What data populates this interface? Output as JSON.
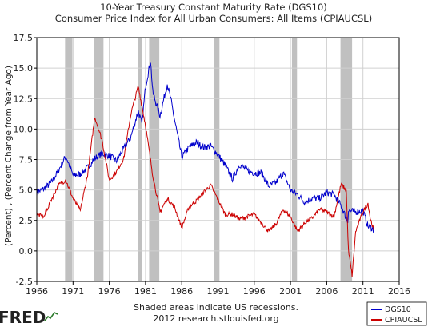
{
  "chart_data": {
    "type": "line",
    "title": "10-Year Treasury Constant Maturity Rate (DGS10)",
    "subtitle": "Consumer Price Index for All Urban Consumers: All Items (CPIAUCSL)",
    "ylabel": "(Percent) , (Percent Change from Year Ago)",
    "xlabel": "",
    "xlim": [
      1966,
      2016
    ],
    "ylim": [
      -2.5,
      17.5
    ],
    "xticks": [
      "1966",
      "1971",
      "1976",
      "1981",
      "1986",
      "1991",
      "1996",
      "2001",
      "2006",
      "2011",
      "2016"
    ],
    "yticks": [
      "-2.5",
      "0.0",
      "2.5",
      "5.0",
      "7.5",
      "10.0",
      "12.5",
      "15.0",
      "17.5"
    ],
    "grid": true,
    "legend_position": "bottom-right",
    "recessions": [
      [
        1969.9,
        1970.9
      ],
      [
        1973.9,
        1975.2
      ],
      [
        1980.0,
        1980.5
      ],
      [
        1981.5,
        1982.9
      ],
      [
        1990.5,
        1991.2
      ],
      [
        2001.2,
        2001.9
      ],
      [
        2007.9,
        2009.5
      ]
    ],
    "note": [
      "Shaded areas indicate US recessions.",
      "2012 research.stlouisfed.org"
    ],
    "logo": "FRED",
    "series": [
      {
        "name": "DGS10",
        "color": "#0000cc",
        "x": [
          1966,
          1967,
          1968,
          1969,
          1970,
          1971,
          1972,
          1973,
          1974,
          1975,
          1976,
          1977,
          1978,
          1979,
          1980,
          1980.5,
          1981,
          1981.7,
          1982,
          1983,
          1984,
          1984.5,
          1985,
          1986,
          1987,
          1988,
          1989,
          1990,
          1991,
          1992,
          1993,
          1994,
          1995,
          1996,
          1997,
          1998,
          1999,
          2000,
          2001,
          2002,
          2003,
          2004,
          2005,
          2006,
          2007,
          2008,
          2008.9,
          2009,
          2010,
          2011,
          2011.7,
          2012,
          2012.5
        ],
        "y": [
          4.8,
          5.1,
          5.6,
          6.6,
          7.8,
          6.2,
          6.3,
          6.8,
          7.6,
          8.0,
          7.8,
          7.4,
          8.4,
          9.4,
          11.5,
          10.4,
          13.5,
          15.6,
          13.0,
          11.1,
          13.7,
          12.4,
          10.8,
          7.7,
          8.5,
          8.9,
          8.5,
          8.6,
          7.9,
          7.0,
          5.9,
          7.1,
          6.6,
          6.4,
          6.4,
          5.3,
          5.6,
          6.4,
          5.0,
          4.6,
          4.0,
          4.3,
          4.3,
          4.8,
          4.6,
          3.7,
          2.4,
          3.3,
          3.2,
          3.3,
          2.0,
          2.0,
          1.7
        ]
      },
      {
        "name": "CPIAUCSL",
        "color": "#cc0000",
        "x": [
          1966,
          1967,
          1968,
          1969,
          1970,
          1971,
          1972,
          1973,
          1974,
          1975,
          1976,
          1977,
          1978,
          1979,
          1980,
          1981,
          1982,
          1983,
          1984,
          1985,
          1986,
          1987,
          1988,
          1989,
          1990,
          1991,
          1992,
          1993,
          1994,
          1995,
          1996,
          1997,
          1998,
          1999,
          2000,
          2001,
          2002,
          2003,
          2004,
          2005,
          2006,
          2007,
          2008,
          2008.7,
          2009,
          2009.5,
          2010,
          2011,
          2011.7,
          2012,
          2012.5
        ],
        "y": [
          3.0,
          2.8,
          4.2,
          5.4,
          5.8,
          4.3,
          3.3,
          6.2,
          11.0,
          9.1,
          5.8,
          6.5,
          7.6,
          11.3,
          13.5,
          10.3,
          6.2,
          3.2,
          4.3,
          3.6,
          1.9,
          3.6,
          4.1,
          4.8,
          5.4,
          4.2,
          3.0,
          3.0,
          2.6,
          2.8,
          3.0,
          2.3,
          1.6,
          2.2,
          3.4,
          2.8,
          1.6,
          2.3,
          2.7,
          3.4,
          3.2,
          2.8,
          5.5,
          4.9,
          0.0,
          -2.0,
          1.6,
          3.2,
          3.9,
          2.7,
          1.7
        ]
      }
    ]
  }
}
